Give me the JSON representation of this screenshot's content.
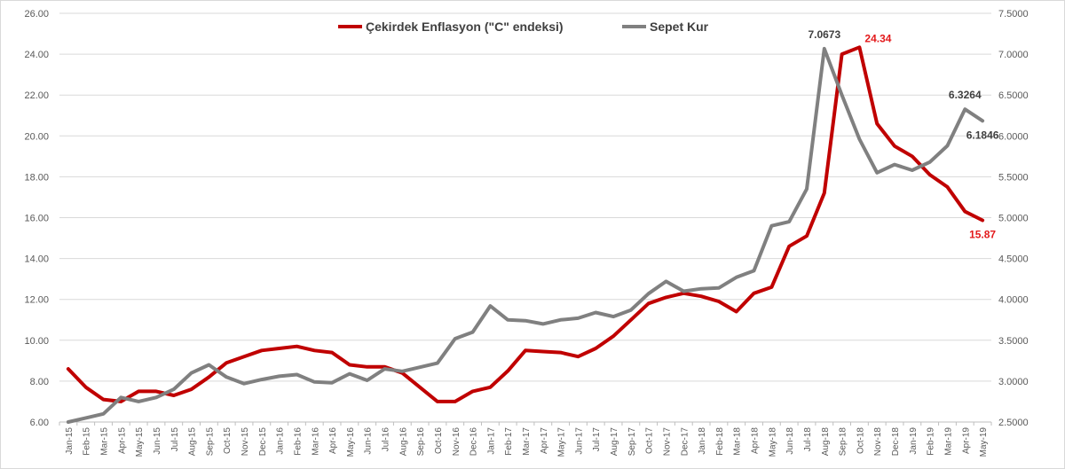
{
  "chart_data": {
    "type": "line",
    "title": "",
    "xlabel": "",
    "ylabel": "",
    "y_left": {
      "min": 6.0,
      "max": 26.0,
      "step": 2.0,
      "ticks": [
        "26.00",
        "24.00",
        "22.00",
        "20.00",
        "18.00",
        "16.00",
        "14.00",
        "12.00",
        "10.00",
        "8.00",
        "6.00"
      ]
    },
    "y_right": {
      "min": 2.5,
      "max": 7.5,
      "step": 0.5,
      "ticks": [
        "7.5000",
        "7.0000",
        "6.5000",
        "6.0000",
        "5.5000",
        "5.0000",
        "4.5000",
        "4.0000",
        "3.5000",
        "3.0000",
        "2.5000"
      ]
    },
    "categories": [
      "Jan-15",
      "Feb-15",
      "Mar-15",
      "Apr-15",
      "May-15",
      "Jun-15",
      "Jul-15",
      "Aug-15",
      "Sep-15",
      "Oct-15",
      "Nov-15",
      "Dec-15",
      "Jan-16",
      "Feb-16",
      "Mar-16",
      "Apr-16",
      "May-16",
      "Jun-16",
      "Jul-16",
      "Aug-16",
      "Sep-16",
      "Oct-16",
      "Nov-16",
      "Dec-16",
      "Jan-17",
      "Feb-17",
      "Mar-17",
      "Apr-17",
      "May-17",
      "Jun-17",
      "Jul-17",
      "Aug-17",
      "Sep-17",
      "Oct-17",
      "Nov-17",
      "Dec-17",
      "Jan-18",
      "Feb-18",
      "Mar-18",
      "Apr-18",
      "May-18",
      "Jun-18",
      "Jul-18",
      "Aug-18",
      "Sep-18",
      "Oct-18",
      "Nov-18",
      "Dec-18",
      "Jan-19",
      "Feb-19",
      "Mar-19",
      "Apr-19",
      "May-19"
    ],
    "series": [
      {
        "name": "Çekirdek Enflasyon (\"C\" endeksi)",
        "axis": "left",
        "color": "#c00000",
        "values": [
          8.6,
          7.7,
          7.1,
          7.0,
          7.5,
          7.5,
          7.3,
          7.6,
          8.2,
          8.9,
          9.2,
          9.5,
          9.6,
          9.7,
          9.5,
          9.4,
          8.8,
          8.7,
          8.7,
          8.4,
          7.7,
          7.0,
          7.0,
          7.5,
          7.7,
          8.5,
          9.5,
          9.45,
          9.4,
          9.2,
          9.6,
          10.2,
          11.0,
          11.8,
          12.1,
          12.3,
          12.15,
          11.9,
          11.4,
          12.3,
          12.6,
          14.6,
          15.1,
          17.2,
          24.0,
          24.34,
          20.6,
          19.5,
          19.0,
          18.1,
          17.5,
          16.3,
          15.87
        ]
      },
      {
        "name": "Sepet Kur",
        "axis": "right",
        "color": "#808080",
        "values": [
          2.5,
          2.55,
          2.6,
          2.8,
          2.75,
          2.8,
          2.9,
          3.1,
          3.2,
          3.05,
          2.97,
          3.02,
          3.06,
          3.08,
          2.99,
          2.98,
          3.09,
          3.01,
          3.15,
          3.12,
          3.17,
          3.22,
          3.52,
          3.6,
          3.92,
          3.75,
          3.74,
          3.7,
          3.75,
          3.77,
          3.84,
          3.79,
          3.87,
          4.07,
          4.22,
          4.1,
          4.13,
          4.14,
          4.27,
          4.35,
          4.9,
          4.95,
          5.35,
          7.0673,
          6.5,
          5.96,
          5.55,
          5.65,
          5.58,
          5.68,
          5.88,
          6.3264,
          6.1846
        ]
      }
    ],
    "annotations": [
      {
        "series": 1,
        "index": 43,
        "text": "7.0673",
        "color": "#404040",
        "pos": "above"
      },
      {
        "series": 0,
        "index": 45,
        "text": "24.34",
        "color": "#e31a1c",
        "pos": "right"
      },
      {
        "series": 1,
        "index": 51,
        "text": "6.3264",
        "color": "#404040",
        "pos": "above"
      },
      {
        "series": 1,
        "index": 52,
        "text": "6.1846",
        "color": "#404040",
        "pos": "below"
      },
      {
        "series": 0,
        "index": 52,
        "text": "15.87",
        "color": "#e31a1c",
        "pos": "below"
      }
    ],
    "legend": "top"
  }
}
